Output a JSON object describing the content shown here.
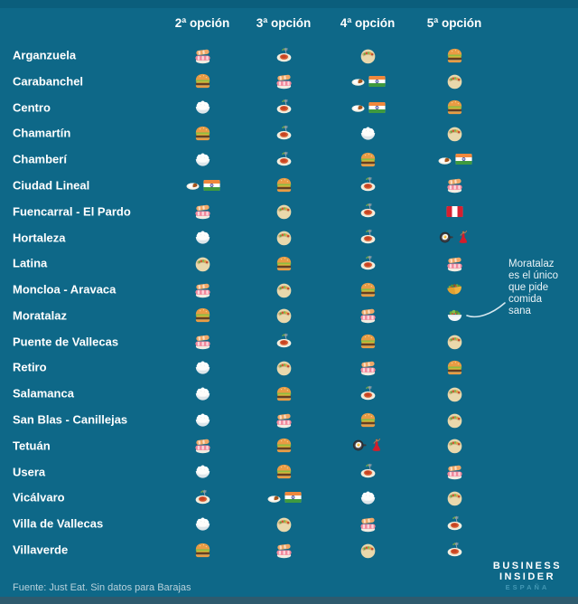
{
  "chart_data": {
    "type": "table",
    "title": "",
    "columns": [
      "2ª opción",
      "3ª opción",
      "4ª opción",
      "5ª opción"
    ],
    "rows": [
      {
        "district": "Arganzuela",
        "options": [
          [
            "sushi"
          ],
          [
            "spaghetti"
          ],
          [
            "pita"
          ],
          [
            "burger"
          ]
        ]
      },
      {
        "district": "Carabanchel",
        "options": [
          [
            "burger"
          ],
          [
            "sushi"
          ],
          [
            "curry",
            "flag-india"
          ],
          [
            "pita"
          ]
        ]
      },
      {
        "district": "Centro",
        "options": [
          [
            "rice"
          ],
          [
            "spaghetti"
          ],
          [
            "curry",
            "flag-india"
          ],
          [
            "burger"
          ]
        ]
      },
      {
        "district": "Chamartín",
        "options": [
          [
            "burger"
          ],
          [
            "spaghetti"
          ],
          [
            "rice"
          ],
          [
            "pita"
          ]
        ]
      },
      {
        "district": "Chamberí",
        "options": [
          [
            "rice"
          ],
          [
            "spaghetti"
          ],
          [
            "burger"
          ],
          [
            "curry",
            "flag-india"
          ]
        ]
      },
      {
        "district": "Ciudad Lineal",
        "options": [
          [
            "curry",
            "flag-india"
          ],
          [
            "burger"
          ],
          [
            "spaghetti"
          ],
          [
            "sushi"
          ]
        ]
      },
      {
        "district": "Fuencarral - El Pardo",
        "options": [
          [
            "sushi"
          ],
          [
            "pita"
          ],
          [
            "spaghetti"
          ],
          [
            "flag-peru"
          ]
        ]
      },
      {
        "district": "Hortaleza",
        "options": [
          [
            "rice"
          ],
          [
            "pita"
          ],
          [
            "spaghetti"
          ],
          [
            "egg-pan",
            "flamenco"
          ]
        ]
      },
      {
        "district": "Latina",
        "options": [
          [
            "pita"
          ],
          [
            "burger"
          ],
          [
            "spaghetti"
          ],
          [
            "sushi"
          ]
        ]
      },
      {
        "district": "Moncloa - Aravaca",
        "options": [
          [
            "sushi"
          ],
          [
            "pita"
          ],
          [
            "burger"
          ],
          [
            "taco"
          ]
        ]
      },
      {
        "district": "Moratalaz",
        "options": [
          [
            "burger"
          ],
          [
            "pita"
          ],
          [
            "sushi"
          ],
          [
            "salad"
          ]
        ]
      },
      {
        "district": "Puente de Vallecas",
        "options": [
          [
            "sushi"
          ],
          [
            "spaghetti"
          ],
          [
            "burger"
          ],
          [
            "pita"
          ]
        ]
      },
      {
        "district": "Retiro",
        "options": [
          [
            "rice"
          ],
          [
            "pita"
          ],
          [
            "sushi"
          ],
          [
            "burger"
          ]
        ]
      },
      {
        "district": "Salamanca",
        "options": [
          [
            "rice"
          ],
          [
            "burger"
          ],
          [
            "spaghetti"
          ],
          [
            "pita"
          ]
        ]
      },
      {
        "district": "San Blas - Canillejas",
        "options": [
          [
            "rice"
          ],
          [
            "sushi"
          ],
          [
            "burger"
          ],
          [
            "pita"
          ]
        ]
      },
      {
        "district": "Tetuán",
        "options": [
          [
            "sushi"
          ],
          [
            "burger"
          ],
          [
            "egg-pan",
            "flamenco"
          ],
          [
            "pita"
          ]
        ]
      },
      {
        "district": "Usera",
        "options": [
          [
            "rice"
          ],
          [
            "burger"
          ],
          [
            "spaghetti"
          ],
          [
            "sushi"
          ]
        ]
      },
      {
        "district": "Vicálvaro",
        "options": [
          [
            "spaghetti"
          ],
          [
            "curry",
            "flag-india"
          ],
          [
            "rice"
          ],
          [
            "pita"
          ]
        ]
      },
      {
        "district": "Villa de Vallecas",
        "options": [
          [
            "rice"
          ],
          [
            "pita"
          ],
          [
            "sushi"
          ],
          [
            "spaghetti"
          ]
        ]
      },
      {
        "district": "Villaverde",
        "options": [
          [
            "burger"
          ],
          [
            "sushi"
          ],
          [
            "pita"
          ],
          [
            "spaghetti"
          ]
        ]
      }
    ]
  },
  "icon_emoji": {
    "sushi": "🍣",
    "burger": "🍔",
    "rice": "🍚",
    "spaghetti": "🍝",
    "pita": "🥙",
    "curry": "🍛",
    "flag-india": "🇮🇳",
    "flag-peru": "🇵🇪",
    "taco": "🌮",
    "salad": "🥗",
    "egg-pan": "🍳",
    "flamenco": "💃"
  },
  "annotation": {
    "text": "Moratalaz\nes el único\nque pide\ncomida\nsana"
  },
  "footer": {
    "source": "Fuente: Just Eat. Sin datos para Barajas"
  },
  "logo": {
    "line1": "BUSINESS",
    "line2": "INSIDER",
    "line3": "ESPAÑA"
  },
  "colors": {
    "background": "#0e6888",
    "top_strip": "#0b5e7c",
    "bottom_bar": "#2e5b6e",
    "text": "#ffffff",
    "footer_text": "#b9d2dc",
    "logo_espana": "#4398b4",
    "annotation_line": "#d7e8ef"
  }
}
